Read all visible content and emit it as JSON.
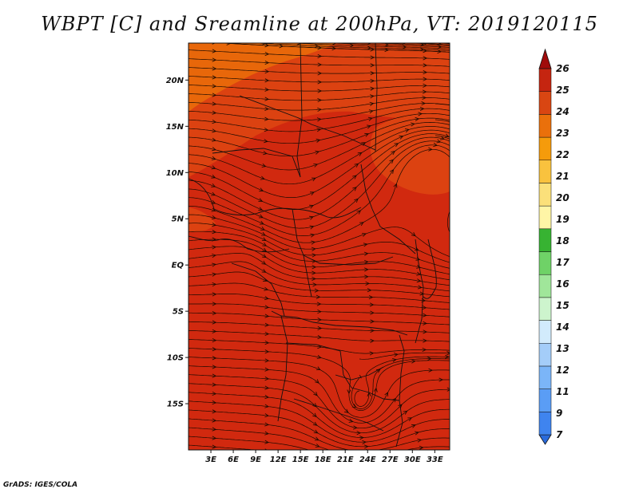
{
  "title": "WBPT [C] and Sreamline at 200hPa, VT: 2019120115",
  "credit": "GrADS: IGES/COLA",
  "map": {
    "lon_range": [
      0,
      35
    ],
    "lat_range": [
      -20,
      24
    ],
    "lat_ticks": [
      "20N",
      "15N",
      "10N",
      "5N",
      "EQ",
      "5S",
      "10S",
      "15S"
    ],
    "lat_values": [
      20,
      15,
      10,
      5,
      0,
      -5,
      -10,
      -15
    ],
    "lon_ticks": [
      "3E",
      "6E",
      "9E",
      "12E",
      "15E",
      "18E",
      "21E",
      "24E",
      "27E",
      "30E",
      "33E"
    ],
    "lon_values": [
      3,
      6,
      9,
      12,
      15,
      18,
      21,
      24,
      27,
      30,
      33
    ],
    "fill_colors": {
      "c22": "#e8670a",
      "c23": "#dc4211",
      "c24": "#d1290f"
    }
  },
  "legend": {
    "labels": [
      "7",
      "9",
      "11",
      "12",
      "13",
      "14",
      "15",
      "16",
      "17",
      "18",
      "19",
      "20",
      "21",
      "22",
      "23",
      "24",
      "25",
      "26"
    ],
    "colors": [
      "#2a6bdc",
      "#3f84ef",
      "#5a9df5",
      "#7bb5f8",
      "#a4cdf9",
      "#d2ebfc",
      "#cdf4cd",
      "#a0e69a",
      "#6fd267",
      "#37b332",
      "#fff5a6",
      "#fbe07a",
      "#f9c23e",
      "#f59b0b",
      "#ea700b",
      "#d94612",
      "#c52510",
      "#a00b0b"
    ]
  }
}
